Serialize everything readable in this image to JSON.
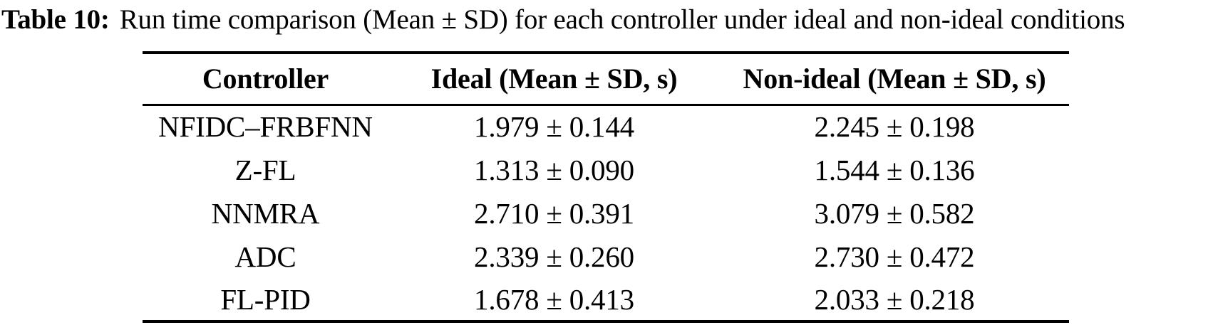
{
  "caption": {
    "label": "Table 10:",
    "text": "Run time comparison (Mean ± SD) for each controller under ideal and non-ideal conditions"
  },
  "table": {
    "columns": [
      "Controller",
      "Ideal (Mean ± SD, s)",
      "Non-ideal (Mean ± SD, s)"
    ],
    "rows": [
      {
        "controller": "NFIDC–FRBFNN",
        "ideal": "1.979 ± 0.144",
        "non_ideal": "2.245 ± 0.198"
      },
      {
        "controller": "Z-FL",
        "ideal": "1.313 ± 0.090",
        "non_ideal": "1.544 ± 0.136"
      },
      {
        "controller": "NNMRA",
        "ideal": "2.710 ± 0.391",
        "non_ideal": "3.079 ± 0.582"
      },
      {
        "controller": "ADC",
        "ideal": "2.339 ± 0.260",
        "non_ideal": "2.730 ± 0.472"
      },
      {
        "controller": "FL-PID",
        "ideal": "1.678 ± 0.413",
        "non_ideal": "2.033 ± 0.218"
      }
    ]
  }
}
